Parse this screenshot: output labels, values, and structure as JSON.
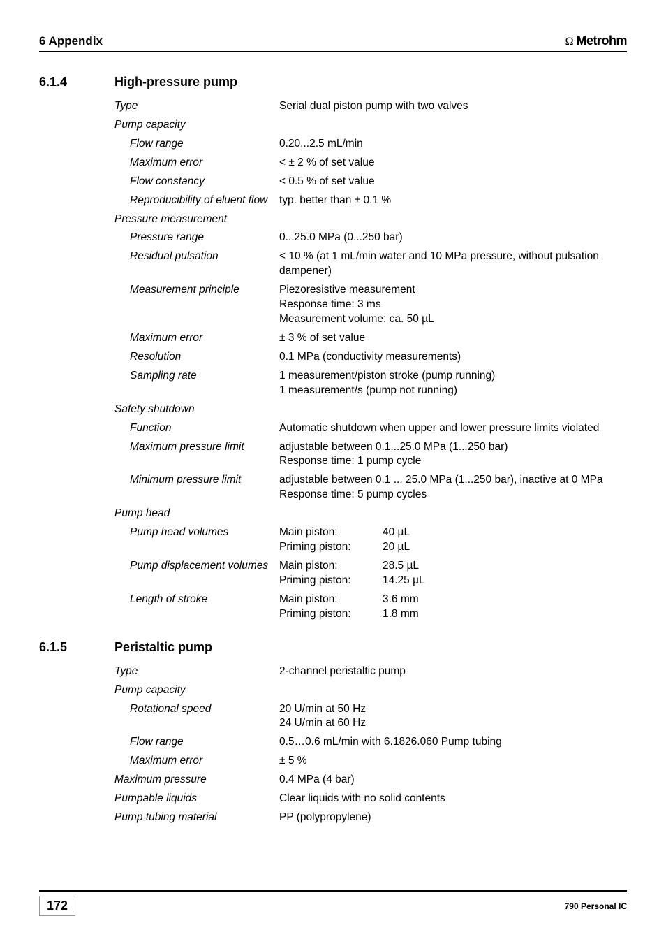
{
  "header": {
    "chapter": "6 Appendix",
    "brand_symbol": "Ω",
    "brand": "Metrohm"
  },
  "sec614": {
    "num": "6.1.4",
    "title": "High-pressure pump",
    "rows": [
      {
        "label": "Type",
        "indent": 0,
        "value": [
          "Serial dual piston pump with two valves"
        ]
      },
      {
        "label": "Pump capacity",
        "indent": 0,
        "value": []
      },
      {
        "label": "Flow range",
        "indent": 1,
        "value": [
          "0.20...2.5 mL/min"
        ]
      },
      {
        "label": "Maximum error",
        "indent": 1,
        "value": [
          "< ± 2 % of set value"
        ]
      },
      {
        "label": "Flow constancy",
        "indent": 1,
        "value": [
          "< 0.5 % of set value"
        ]
      },
      {
        "label": "Reproducibility of eluent flow",
        "indent": 1,
        "value": [
          "typ. better than ± 0.1 %"
        ]
      },
      {
        "label": "Pressure measurement",
        "indent": 0,
        "value": []
      },
      {
        "label": "Pressure range",
        "indent": 1,
        "value": [
          "0...25.0 MPa (0...250 bar)"
        ]
      },
      {
        "label": "Residual pulsation",
        "indent": 1,
        "value": [
          "< 10 % (at 1 mL/min water and 10 MPa pressure, without pulsation dampener)"
        ]
      },
      {
        "label": "Measurement principle",
        "indent": 1,
        "value": [
          "Piezoresistive measurement",
          "Response time: 3 ms",
          "Measurement volume: ca. 50 µL"
        ]
      },
      {
        "label": "Maximum error",
        "indent": 1,
        "value": [
          "± 3 % of set value"
        ]
      },
      {
        "label": "Resolution",
        "indent": 1,
        "value": [
          "0.1 MPa (conductivity measurements)"
        ]
      },
      {
        "label": "Sampling rate",
        "indent": 1,
        "value": [
          "1 measurement/piston stroke (pump running)",
          "1 measurement/s (pump not running)"
        ]
      },
      {
        "label": "Safety shutdown",
        "indent": 0,
        "value": []
      },
      {
        "label": "Function",
        "indent": 1,
        "value": [
          "Automatic shutdown when upper and lower pressure limits violated"
        ]
      },
      {
        "label": "Maximum pressure limit",
        "indent": 1,
        "value": [
          "adjustable between 0.1...25.0 MPa (1...250 bar)",
          "Response time: 1 pump cycle"
        ]
      },
      {
        "label": "Minimum pressure limit",
        "indent": 1,
        "value": [
          "adjustable between 0.1 ... 25.0 MPa (1...250 bar), inactive at 0 MPa",
          "Response time: 5 pump cycles"
        ]
      },
      {
        "label": "Pump head",
        "indent": 0,
        "value": []
      },
      {
        "label": "Pump head volumes",
        "indent": 1,
        "subrows": [
          {
            "l": "Main piston:",
            "v": "40 µL"
          },
          {
            "l": "Priming piston:",
            "v": "20 µL"
          }
        ]
      },
      {
        "label": "Pump displacement volumes",
        "indent": 1,
        "subrows": [
          {
            "l": "Main piston:",
            "v": "28.5 µL"
          },
          {
            "l": "Priming piston:",
            "v": "14.25 µL"
          }
        ]
      },
      {
        "label": "Length of stroke",
        "indent": 1,
        "subrows": [
          {
            "l": "Main piston:",
            "v": "3.6 mm"
          },
          {
            "l": "Priming piston:",
            "v": "1.8 mm"
          }
        ]
      }
    ]
  },
  "sec615": {
    "num": "6.1.5",
    "title": "Peristaltic pump",
    "rows": [
      {
        "label": "Type",
        "indent": 0,
        "value": [
          "2-channel peristaltic pump"
        ]
      },
      {
        "label": "Pump capacity",
        "indent": 0,
        "value": []
      },
      {
        "label": "Rotational speed",
        "indent": 1,
        "value": [
          "20 U/min at 50 Hz",
          "24 U/min at 60 Hz"
        ]
      },
      {
        "label": "Flow range",
        "indent": 1,
        "value": [
          "0.5…0.6 mL/min with 6.1826.060 Pump tubing"
        ]
      },
      {
        "label": "Maximum error",
        "indent": 1,
        "value": [
          "± 5 %"
        ]
      },
      {
        "label": "Maximum pressure",
        "indent": 0,
        "value": [
          "0.4 MPa (4 bar)"
        ]
      },
      {
        "label": "Pumpable liquids",
        "indent": 0,
        "value": [
          "Clear liquids with no solid contents"
        ]
      },
      {
        "label": "Pump tubing material",
        "indent": 0,
        "value": [
          "PP (polypropylene)"
        ]
      }
    ]
  },
  "footer": {
    "page": "172",
    "doc": "790 Personal IC"
  }
}
